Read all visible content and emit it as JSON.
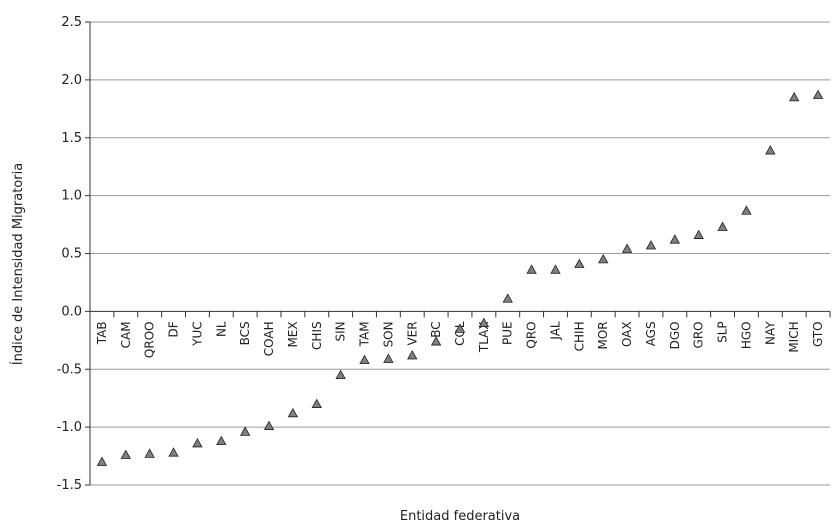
{
  "chart_data": {
    "type": "scatter",
    "title": "",
    "xlabel": "Entidad federativa",
    "ylabel": "Índice de Intensidad Migratoria",
    "ylim": [
      -1.5,
      2.5
    ],
    "yticks": [
      "2.5",
      "2.0",
      "1.5",
      "1.0",
      "0.5",
      "0.0",
      "-0.5",
      "-1.0",
      "-1.5"
    ],
    "ytick_values": [
      2.5,
      2.0,
      1.5,
      1.0,
      0.5,
      0.0,
      -0.5,
      -1.0,
      -1.5
    ],
    "grid": true,
    "marker": "triangle",
    "marker_color": "#7f7f7f",
    "categories": [
      "TAB",
      "CAM",
      "QROO",
      "DF",
      "YUC",
      "NL",
      "BCS",
      "COAH",
      "MEX",
      "CHIS",
      "SIN",
      "TAM",
      "SON",
      "VER",
      "BC",
      "COL",
      "TLAX",
      "PUE",
      "QRO",
      "JAL",
      "CHIH",
      "MOR",
      "OAX",
      "AGS",
      "DGO",
      "GRO",
      "SLP",
      "HGO",
      "NAY",
      "MICH",
      "GTO"
    ],
    "values": [
      -1.3,
      -1.24,
      -1.23,
      -1.22,
      -1.14,
      -1.12,
      -1.04,
      -0.99,
      -0.88,
      -0.8,
      -0.55,
      -0.42,
      -0.41,
      -0.38,
      -0.26,
      -0.15,
      -0.1,
      0.11,
      0.36,
      0.36,
      0.41,
      0.45,
      0.54,
      0.57,
      0.62,
      0.66,
      0.73,
      0.87,
      1.39,
      1.85,
      1.87
    ]
  }
}
